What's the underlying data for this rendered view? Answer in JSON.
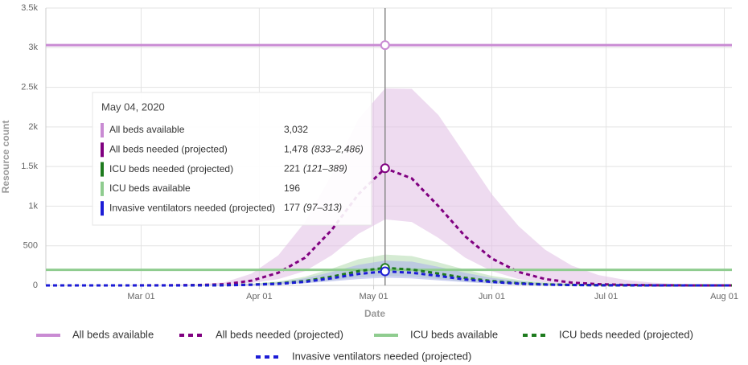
{
  "chart_data": {
    "type": "line",
    "x_title": "Date",
    "y_title": "Resource count",
    "x": [
      "2020-02-05",
      "2020-02-10",
      "2020-02-17",
      "2020-02-24",
      "2020-03-02",
      "2020-03-09",
      "2020-03-16",
      "2020-03-23",
      "2020-03-30",
      "2020-04-06",
      "2020-04-13",
      "2020-04-20",
      "2020-04-27",
      "2020-05-04",
      "2020-05-11",
      "2020-05-18",
      "2020-05-25",
      "2020-06-01",
      "2020-06-08",
      "2020-06-15",
      "2020-06-22",
      "2020-06-29",
      "2020-07-06",
      "2020-07-13",
      "2020-07-20",
      "2020-07-27",
      "2020-08-03"
    ],
    "xlim": [
      "2020-02-05",
      "2020-08-03"
    ],
    "xticks": [
      {
        "value": "2020-03-01",
        "label": "Mar 01"
      },
      {
        "value": "2020-04-01",
        "label": "Apr 01"
      },
      {
        "value": "2020-05-01",
        "label": "May 01"
      },
      {
        "value": "2020-06-01",
        "label": "Jun 01"
      },
      {
        "value": "2020-07-01",
        "label": "Jul 01"
      },
      {
        "value": "2020-08-01",
        "label": "Aug 01"
      }
    ],
    "ylim": [
      0,
      3500
    ],
    "yticks": [
      0,
      500,
      {
        "value": 1000,
        "label": "1k"
      },
      {
        "value": 1500,
        "label": "1.5k"
      },
      {
        "value": 2000,
        "label": "2k"
      },
      {
        "value": 2500,
        "label": "2.5k"
      },
      {
        "value": 3000,
        "label": "3k"
      },
      {
        "value": 3500,
        "label": "3.5k"
      }
    ],
    "grid": true,
    "legend": "bottom",
    "series": [
      {
        "name": "All beds available",
        "color": "#c98bd3",
        "dash": false,
        "values": [
          3032,
          3032,
          3032,
          3032,
          3032,
          3032,
          3032,
          3032,
          3032,
          3032,
          3032,
          3032,
          3032,
          3032,
          3032,
          3032,
          3032,
          3032,
          3032,
          3032,
          3032,
          3032,
          3032,
          3032,
          3032,
          3032,
          3032
        ],
        "tooltip_value": "3,032"
      },
      {
        "name": "All beds needed (projected)",
        "color": "#800080",
        "band_color": "#e2c3e6",
        "dash": true,
        "values": [
          0,
          0,
          0,
          0,
          1,
          2,
          5,
          15,
          60,
          160,
          350,
          700,
          1150,
          1478,
          1350,
          1000,
          620,
          340,
          170,
          80,
          35,
          15,
          6,
          2,
          1,
          0,
          0
        ],
        "lower": [
          0,
          0,
          0,
          0,
          0,
          1,
          3,
          8,
          30,
          80,
          180,
          380,
          650,
          833,
          800,
          600,
          350,
          180,
          80,
          35,
          12,
          5,
          2,
          1,
          0,
          0,
          0
        ],
        "upper": [
          0,
          0,
          0,
          0,
          2,
          5,
          12,
          40,
          150,
          380,
          800,
          1400,
          2100,
          2486,
          2480,
          2150,
          1650,
          1150,
          750,
          450,
          250,
          130,
          70,
          35,
          15,
          6,
          2
        ],
        "tooltip_value": "1,478",
        "tooltip_range": "(833–2,486)"
      },
      {
        "name": "ICU beds available",
        "color": "#8fcc8f",
        "dash": false,
        "values": [
          196,
          196,
          196,
          196,
          196,
          196,
          196,
          196,
          196,
          196,
          196,
          196,
          196,
          196,
          196,
          196,
          196,
          196,
          196,
          196,
          196,
          196,
          196,
          196,
          196,
          196,
          196
        ],
        "tooltip_value": "196"
      },
      {
        "name": "ICU beds needed (projected)",
        "color": "#1e7b1e",
        "band_color": "#b9deb6",
        "dash": true,
        "values": [
          0,
          0,
          0,
          0,
          0,
          0,
          1,
          3,
          10,
          25,
          55,
          110,
          180,
          221,
          200,
          150,
          95,
          55,
          28,
          13,
          6,
          3,
          1,
          0,
          0,
          0,
          0
        ],
        "lower": [
          0,
          0,
          0,
          0,
          0,
          0,
          0,
          2,
          6,
          15,
          32,
          65,
          100,
          121,
          110,
          80,
          50,
          28,
          14,
          6,
          3,
          1,
          0,
          0,
          0,
          0,
          0
        ],
        "upper": [
          0,
          0,
          0,
          0,
          0,
          1,
          2,
          6,
          20,
          50,
          110,
          210,
          330,
          389,
          370,
          290,
          200,
          120,
          70,
          35,
          18,
          8,
          4,
          2,
          1,
          0,
          0
        ],
        "tooltip_value": "221",
        "tooltip_range": "(121–389)"
      },
      {
        "name": "Invasive ventilators needed (projected)",
        "color": "#1c1cd6",
        "band_color": "#aeb4ea",
        "dash": true,
        "values": [
          0,
          0,
          0,
          0,
          0,
          0,
          1,
          2,
          8,
          20,
          45,
          90,
          145,
          177,
          160,
          120,
          75,
          44,
          22,
          10,
          5,
          2,
          1,
          0,
          0,
          0,
          0
        ],
        "lower": [
          0,
          0,
          0,
          0,
          0,
          0,
          0,
          1,
          5,
          12,
          26,
          52,
          80,
          97,
          88,
          64,
          40,
          22,
          11,
          5,
          2,
          1,
          0,
          0,
          0,
          0,
          0
        ],
        "upper": [
          0,
          0,
          0,
          0,
          0,
          1,
          2,
          5,
          16,
          40,
          90,
          170,
          260,
          313,
          300,
          235,
          160,
          95,
          55,
          28,
          14,
          6,
          3,
          1,
          0,
          0,
          0
        ],
        "tooltip_value": "177",
        "tooltip_range": "(97–313)"
      }
    ],
    "tooltip": {
      "title": "May 04, 2020",
      "x": "2020-05-04"
    }
  }
}
